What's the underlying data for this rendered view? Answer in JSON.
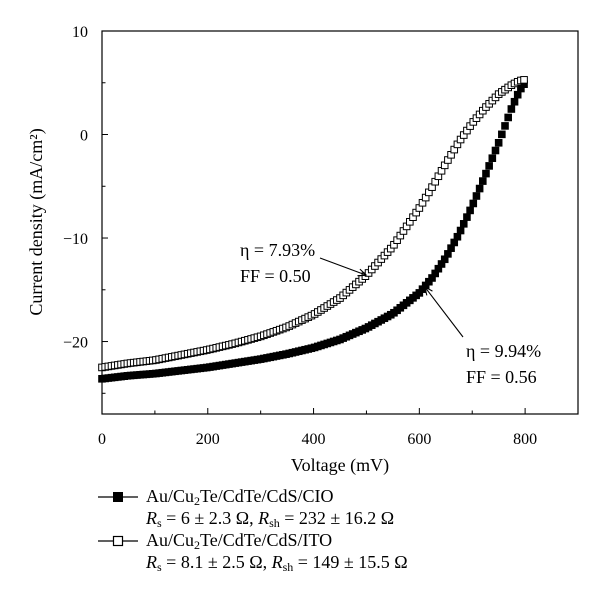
{
  "chart_data": {
    "type": "scatter",
    "xlabel": "Voltage (mV)",
    "ylabel": "Current density (mA/cm²)",
    "xlim": [
      0,
      900
    ],
    "ylim": [
      -27,
      10
    ],
    "xticks": [
      0,
      200,
      400,
      600,
      800
    ],
    "yticks": [
      -20,
      -10,
      0,
      10
    ],
    "series": [
      {
        "name": "Au/Cu2Te/CdTe/CdS/CIO",
        "marker": "filled-square",
        "color": "#000000",
        "x": [
          0,
          50,
          100,
          150,
          200,
          250,
          300,
          350,
          400,
          450,
          500,
          550,
          600,
          625,
          650,
          675,
          700,
          725,
          750,
          775,
          790,
          800
        ],
        "y": [
          -23.6,
          -23.3,
          -23.1,
          -22.8,
          -22.5,
          -22.1,
          -21.7,
          -21.2,
          -20.6,
          -19.8,
          -18.7,
          -17.3,
          -15.3,
          -13.8,
          -11.9,
          -9.6,
          -6.9,
          -3.9,
          -0.8,
          2.6,
          4.3,
          5.0
        ],
        "efficiency": "η = 9.94%",
        "fill_factor": "FF = 0.56",
        "params": {
          "Rs": "6 ± 2.3 Ω",
          "Rsh": "232 ± 16.2 Ω"
        }
      },
      {
        "name": "Au/Cu2Te/CdTe/CdS/ITO",
        "marker": "open-square",
        "color": "#000000",
        "x": [
          0,
          50,
          100,
          150,
          200,
          250,
          300,
          350,
          400,
          450,
          500,
          550,
          600,
          625,
          650,
          675,
          700,
          725,
          750,
          775,
          790,
          800
        ],
        "y": [
          -22.5,
          -22.1,
          -21.8,
          -21.3,
          -20.8,
          -20.2,
          -19.5,
          -18.6,
          -17.4,
          -15.8,
          -13.6,
          -10.8,
          -7.1,
          -5.0,
          -2.8,
          -0.7,
          1.1,
          2.6,
          3.9,
          4.8,
          5.2,
          5.3
        ],
        "efficiency": "η = 7.93%",
        "fill_factor": "FF = 0.50",
        "params": {
          "Rs": "8.1 ± 2.5 Ω",
          "Rsh": "149 ± 15.5 Ω"
        }
      }
    ],
    "annotations": [
      {
        "series": 1,
        "line1": "η = 7.93%",
        "line2": "FF = 0.50",
        "points_to_x": 500
      },
      {
        "series": 0,
        "line1": "η = 9.94%",
        "line2": "FF = 0.56",
        "points_to_x": 610
      }
    ]
  },
  "legend": {
    "items": [
      {
        "label_pre": "Au/Cu",
        "label_sub": "2",
        "label_post": "Te/CdTe/CdS/CIO",
        "rs_value": " = 6 ± 2.3 Ω, ",
        "rsh_value": " = 232 ± 16.2 Ω"
      },
      {
        "label_pre": "Au/Cu",
        "label_sub": "2",
        "label_post": "Te/CdTe/CdS/ITO",
        "rs_value": " = 8.1 ± 2.5 Ω, ",
        "rsh_value": " = 149 ± 15.5 Ω"
      }
    ],
    "rs_symbol": "R",
    "rs_sub": "s",
    "rsh_symbol": "R",
    "rsh_sub": "sh"
  }
}
